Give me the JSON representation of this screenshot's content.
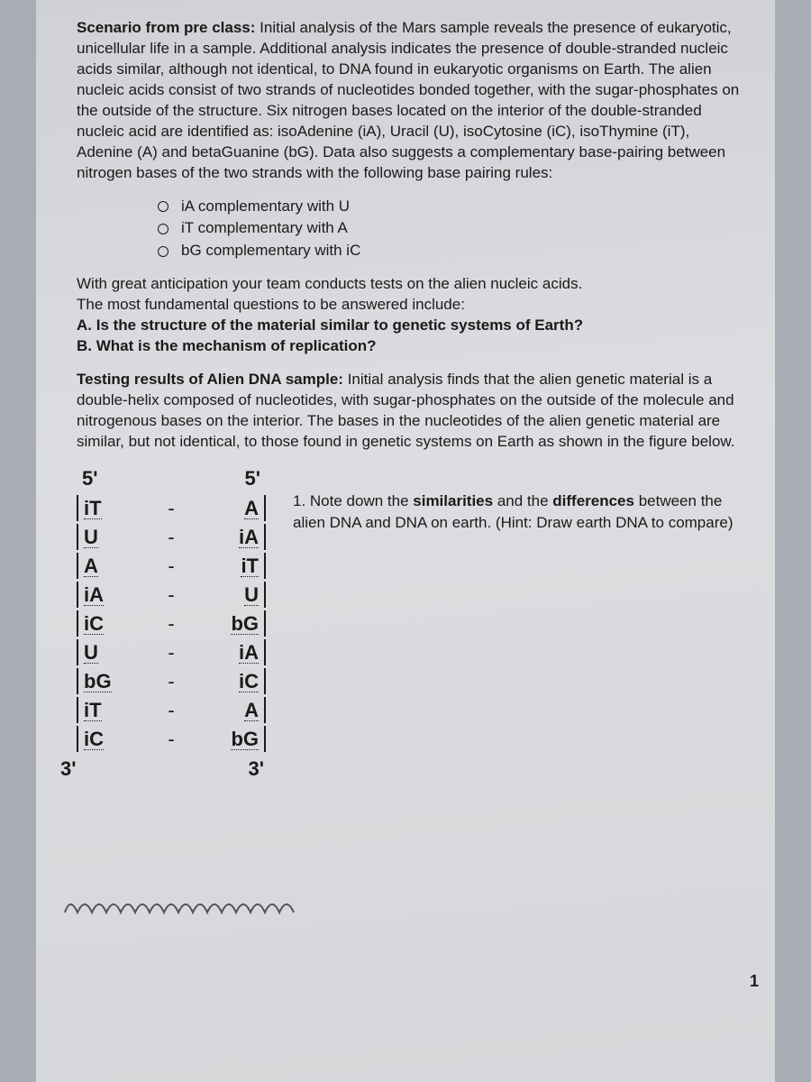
{
  "scenario": {
    "lead": "Scenario from pre class:",
    "body": " Initial analysis of the Mars sample reveals the presence of eukaryotic, unicellular life in a sample.  Additional analysis indicates the presence of double-stranded nucleic acids similar, although not identical, to DNA found in eukaryotic organisms on Earth.  The alien nucleic acids consist of two strands of nucleotides bonded together, with the sugar-phosphates on the outside of the structure.  Six nitrogen bases located on the interior of the double-stranded nucleic acid are identified as:  isoAdenine (iA), Uracil (U), isoCytosine (iC), isoThymine (iT), Adenine (A) and betaGuanine (bG). Data also suggests a complementary base-pairing between nitrogen bases of the two strands with the following base pairing rules:"
  },
  "rules": [
    "iA  complementary with U",
    "iT  complementary with A",
    "bG complementary with iC"
  ],
  "anticipation": {
    "line1": "With great anticipation your team conducts tests on the alien nucleic acids.",
    "line2": "The most fundamental questions to be answered include:",
    "qA": "A. Is the structure of the material similar to genetic systems of Earth?",
    "qB": "B. What is the mechanism of replication?"
  },
  "testing": {
    "lead": "Testing results of Alien DNA sample:",
    "body": " Initial analysis finds that the alien genetic material is a double-helix composed of nucleotides, with sugar-phosphates on the outside of the molecule and nitrogenous bases on the interior.  The bases in the nucleotides of the alien genetic material are similar, but not identical, to those found in genetic systems on Earth as shown in the figure below."
  },
  "strands": {
    "top_left": "5'",
    "top_right": "5'",
    "bottom_left": "3'",
    "bottom_right": "3'",
    "rows": [
      {
        "l": "iT",
        "r": "A"
      },
      {
        "l": "U",
        "r": "iA"
      },
      {
        "l": "A",
        "r": "iT"
      },
      {
        "l": "iA",
        "r": "U"
      },
      {
        "l": "iC",
        "r": "bG"
      },
      {
        "l": "U",
        "r": "iA"
      },
      {
        "l": "bG",
        "r": "iC"
      },
      {
        "l": "iT",
        "r": "A"
      },
      {
        "l": "iC",
        "r": "bG"
      }
    ]
  },
  "question1": {
    "num": "1. ",
    "pre": "Note down the ",
    "b1": "similarities",
    "mid": " and the ",
    "b2": "differences",
    "post": " between the alien DNA and DNA on earth. (Hint: Draw earth DNA to compare)"
  },
  "pagenum": "1",
  "colors": {
    "text": "#1a1a1a",
    "paper": "#d9dadd",
    "bg": "#a8adb5"
  }
}
